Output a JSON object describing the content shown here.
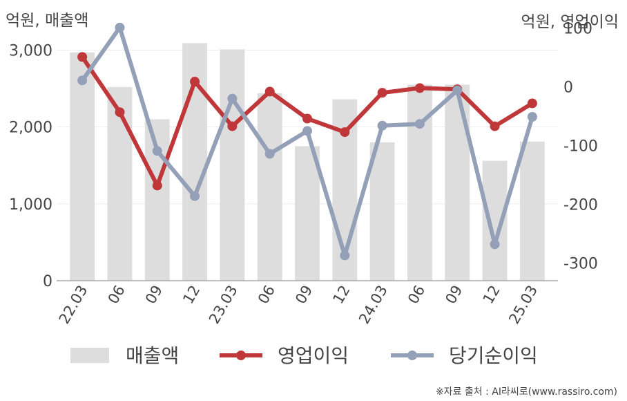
{
  "chart_data": {
    "type": "bar+line",
    "left_axis_title": "억원, 매출액",
    "right_axis_title": "억원, 영업이익",
    "categories": [
      "22.03",
      "06",
      "09",
      "12",
      "23.03",
      "06",
      "09",
      "12",
      "24.03",
      "06",
      "09",
      "12",
      "25.03"
    ],
    "left_ylim": [
      0,
      3400
    ],
    "left_ticks": [
      0,
      1000,
      2000,
      3000
    ],
    "left_tick_labels": [
      "0",
      "1,000",
      "2,000",
      "3,000"
    ],
    "right_ylim": [
      -330,
      115
    ],
    "right_ticks": [
      -300,
      -200,
      -100,
      0,
      100
    ],
    "right_tick_labels": [
      "-300",
      "-200",
      "-100",
      "0",
      "100"
    ],
    "grid": true,
    "legend_position": "bottom",
    "series": [
      {
        "name": "매출액",
        "kind": "bar",
        "axis": "left",
        "color": "#dddddd",
        "values": [
          2970,
          2520,
          2100,
          3090,
          3010,
          2440,
          1750,
          2360,
          1800,
          2550,
          2550,
          1560,
          1810
        ]
      },
      {
        "name": "영업이익",
        "kind": "line",
        "axis": "right",
        "color": "#c0373a",
        "values": [
          51,
          -43,
          -168,
          9,
          -67,
          -8,
          -54,
          -77,
          -10,
          -2,
          -4,
          -67,
          -28
        ]
      },
      {
        "name": "당기순이익",
        "kind": "line",
        "axis": "right",
        "color": "#93a0b8",
        "values": [
          11,
          101,
          -109,
          -186,
          -20,
          -114,
          -75,
          -287,
          -66,
          -63,
          -6,
          -268,
          -51
        ]
      }
    ]
  },
  "footer": {
    "source": "※자료 출처 : AI라씨로(www.rassiro.com)"
  }
}
